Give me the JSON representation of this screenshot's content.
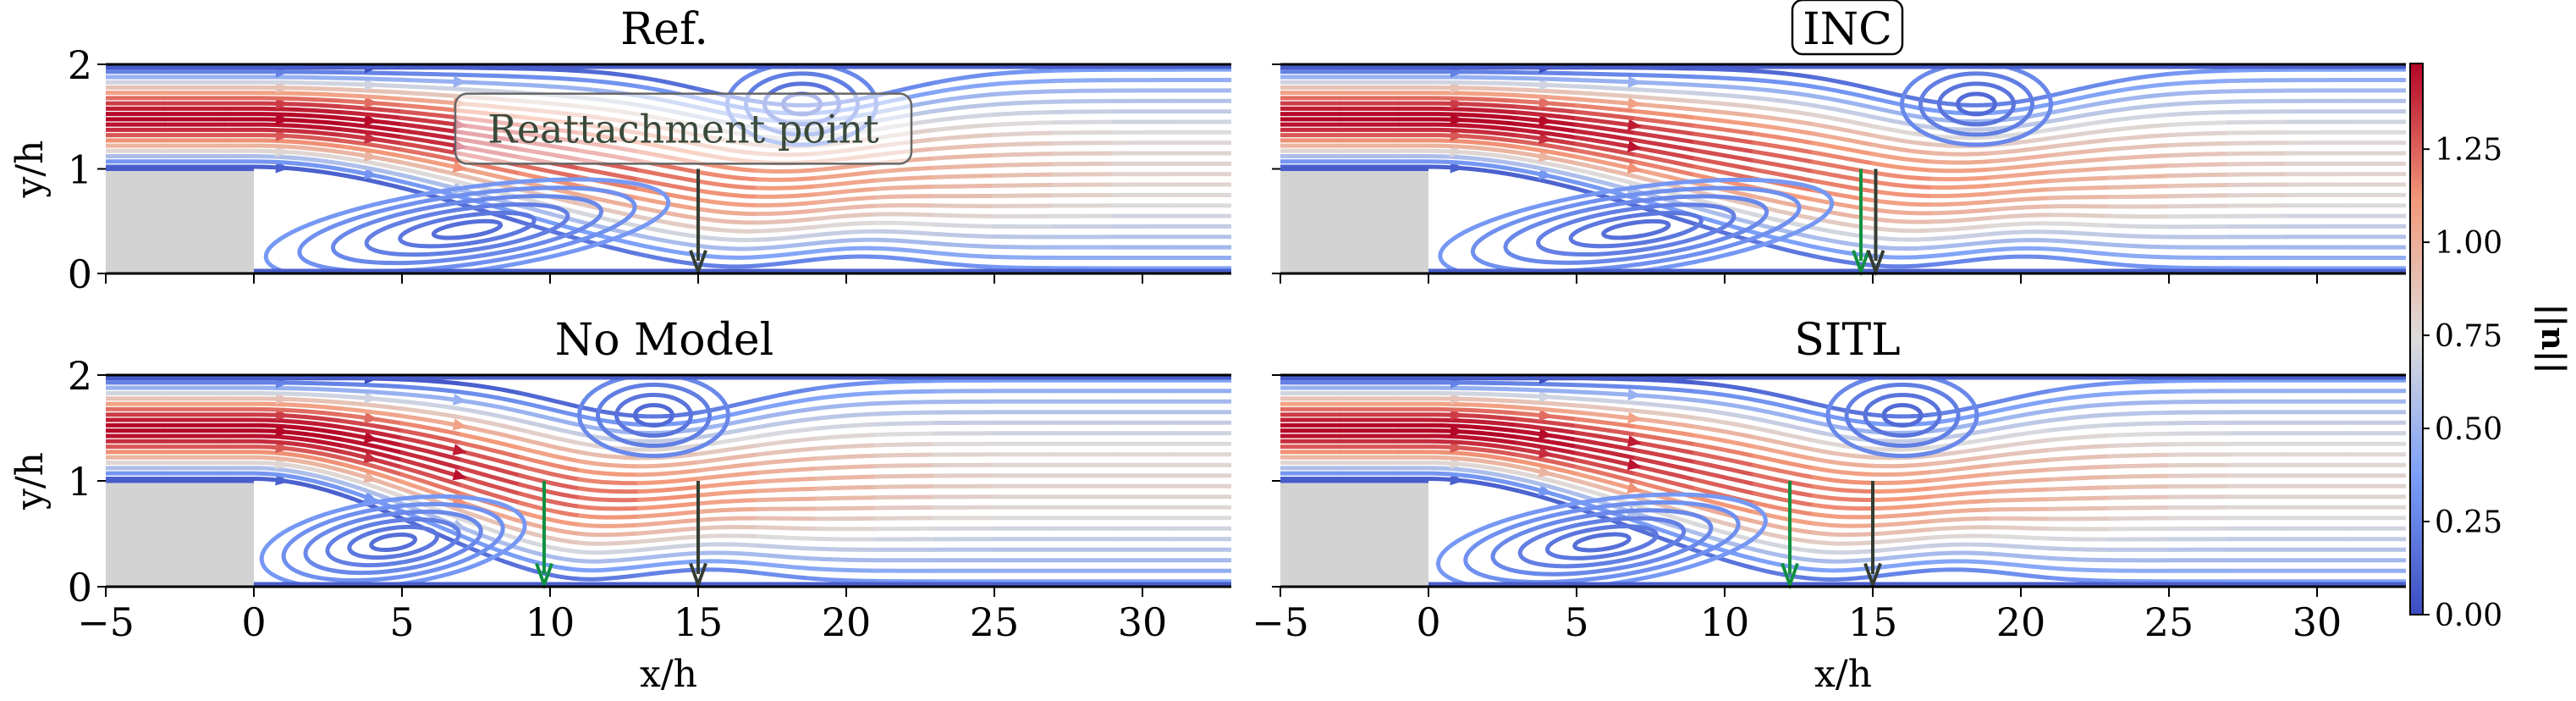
{
  "chart_data": {
    "type": "streamline",
    "xlabel": "x/h",
    "ylabel": "y/h",
    "xlim": [
      -5,
      33
    ],
    "ylim": [
      0,
      2
    ],
    "xticks": [
      "−5",
      "0",
      "5",
      "10",
      "15",
      "20",
      "25",
      "30"
    ],
    "yticks": [
      "0",
      "1",
      "2"
    ],
    "step": {
      "x": [
        -5,
        0
      ],
      "y": [
        0,
        1
      ],
      "color": "#d3d3d3"
    },
    "colormap": "coolwarm",
    "colorbar": {
      "label": "||u||",
      "range": [
        0,
        1.48
      ],
      "ticks": [
        "0.00",
        "0.25",
        "0.50",
        "0.75",
        "1.00",
        "1.25"
      ]
    },
    "reference_arrow_color": "#333d33",
    "model_arrow_color": "#109040",
    "annotation": "Reattachment point",
    "panels": [
      {
        "title": "Ref.",
        "title_boxed": false,
        "reference_reattachment": 15,
        "model_reattachment": null,
        "upper_vortex_x": 18.5,
        "show_ylabel": true,
        "show_xticks": false
      },
      {
        "title": "INC",
        "title_boxed": true,
        "reference_reattachment": 15.1,
        "model_reattachment": 14.6,
        "upper_vortex_x": 18.5,
        "show_ylabel": false,
        "show_xticks": false
      },
      {
        "title": "No Model",
        "title_boxed": false,
        "reference_reattachment": 15,
        "model_reattachment": 9.8,
        "upper_vortex_x": 13.5,
        "show_ylabel": true,
        "show_xticks": true
      },
      {
        "title": "SITL",
        "title_boxed": false,
        "reference_reattachment": 15,
        "model_reattachment": 12.2,
        "upper_vortex_x": 16,
        "show_ylabel": false,
        "show_xticks": true
      }
    ]
  }
}
